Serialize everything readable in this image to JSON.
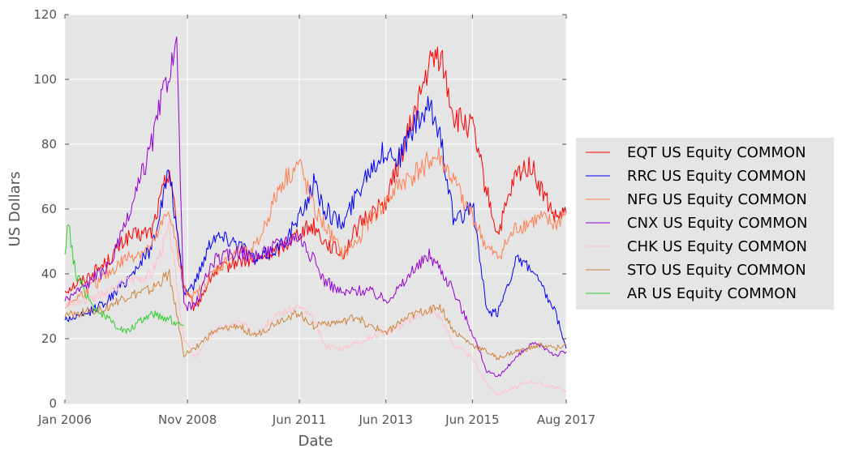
{
  "chart_data": {
    "type": "line",
    "xlabel": "Date",
    "ylabel": "US Dollars",
    "ylim": [
      0,
      120
    ],
    "yticks": [
      0,
      20,
      40,
      60,
      80,
      100,
      120
    ],
    "xlim": [
      "2006-01",
      "2017-08"
    ],
    "xtick_labels": [
      "Jan 2006",
      "Nov 2008",
      "Jun 2011",
      "Jun 2013",
      "Jun 2015",
      "Aug 2017"
    ],
    "grid": true,
    "legend_position": "right",
    "series": [
      {
        "name": "EQT US Equity COMMON",
        "color": "#ff0000",
        "x": [
          "2006-01",
          "2006-06",
          "2007-01",
          "2007-06",
          "2008-01",
          "2008-06",
          "2008-10",
          "2009-01",
          "2009-06",
          "2010-01",
          "2010-06",
          "2011-01",
          "2011-06",
          "2011-10",
          "2012-01",
          "2012-06",
          "2012-10",
          "2013-01",
          "2013-06",
          "2013-10",
          "2014-01",
          "2014-06",
          "2014-09",
          "2015-01",
          "2015-06",
          "2015-10",
          "2016-01",
          "2016-06",
          "2016-10",
          "2017-01",
          "2017-05",
          "2017-08"
        ],
        "y": [
          35,
          38,
          44,
          51,
          53,
          73,
          36,
          29,
          40,
          44,
          44,
          48,
          53,
          55,
          50,
          46,
          54,
          58,
          62,
          76,
          86,
          104,
          108,
          88,
          85,
          65,
          52,
          70,
          74,
          66,
          57,
          59
        ]
      },
      {
        "name": "RRC US Equity COMMON",
        "color": "#0000ff",
        "x": [
          "2006-01",
          "2006-06",
          "2007-01",
          "2007-06",
          "2008-01",
          "2008-06",
          "2008-10",
          "2009-01",
          "2009-06",
          "2010-01",
          "2010-06",
          "2011-01",
          "2011-06",
          "2011-10",
          "2012-01",
          "2012-06",
          "2012-10",
          "2013-01",
          "2013-06",
          "2013-10",
          "2014-01",
          "2014-06",
          "2014-09",
          "2015-01",
          "2015-06",
          "2015-10",
          "2016-01",
          "2016-06",
          "2016-10",
          "2017-01",
          "2017-05",
          "2017-08"
        ],
        "y": [
          26,
          27,
          32,
          38,
          48,
          72,
          34,
          37,
          52,
          50,
          44,
          49,
          57,
          68,
          60,
          55,
          65,
          72,
          78,
          76,
          84,
          91,
          84,
          55,
          62,
          28,
          28,
          44,
          42,
          36,
          28,
          17
        ]
      },
      {
        "name": "NFG US Equity COMMON",
        "color": "#ff7f50",
        "x": [
          "2006-01",
          "2006-06",
          "2007-01",
          "2007-06",
          "2008-01",
          "2008-06",
          "2008-10",
          "2009-01",
          "2009-06",
          "2010-01",
          "2010-06",
          "2011-01",
          "2011-06",
          "2011-10",
          "2012-01",
          "2012-06",
          "2012-10",
          "2013-01",
          "2013-06",
          "2013-10",
          "2014-01",
          "2014-06",
          "2014-09",
          "2015-01",
          "2015-06",
          "2015-10",
          "2016-01",
          "2016-06",
          "2016-10",
          "2017-01",
          "2017-05",
          "2017-08"
        ],
        "y": [
          30,
          34,
          40,
          45,
          48,
          60,
          35,
          33,
          40,
          47,
          48,
          68,
          74,
          60,
          55,
          46,
          50,
          56,
          62,
          68,
          70,
          75,
          76,
          68,
          58,
          48,
          45,
          54,
          56,
          57,
          55,
          59
        ]
      },
      {
        "name": "CNX US Equity COMMON",
        "color": "#9400d3",
        "x": [
          "2006-01",
          "2006-06",
          "2007-01",
          "2007-06",
          "2008-01",
          "2008-06",
          "2008-08",
          "2008-10",
          "2009-01",
          "2009-06",
          "2010-01",
          "2010-06",
          "2011-01",
          "2011-06",
          "2011-10",
          "2012-01",
          "2012-06",
          "2012-10",
          "2013-01",
          "2013-06",
          "2013-10",
          "2014-01",
          "2014-06",
          "2014-09",
          "2015-01",
          "2015-06",
          "2015-10",
          "2016-01",
          "2016-06",
          "2016-10",
          "2017-01",
          "2017-05",
          "2017-08"
        ],
        "y": [
          32,
          36,
          42,
          55,
          80,
          104,
          108,
          30,
          30,
          44,
          47,
          45,
          50,
          52,
          44,
          38,
          34,
          35,
          35,
          32,
          36,
          40,
          46,
          42,
          34,
          22,
          10,
          8,
          14,
          18,
          18,
          15,
          16
        ]
      },
      {
        "name": "CHK US Equity COMMON",
        "color": "#ffc0cb",
        "x": [
          "2006-01",
          "2006-06",
          "2007-01",
          "2007-06",
          "2008-01",
          "2008-06",
          "2008-10",
          "2009-01",
          "2009-06",
          "2010-01",
          "2010-06",
          "2011-01",
          "2011-06",
          "2011-10",
          "2012-01",
          "2012-06",
          "2012-10",
          "2013-01",
          "2013-06",
          "2013-10",
          "2014-01",
          "2014-06",
          "2014-09",
          "2015-01",
          "2015-06",
          "2015-10",
          "2016-01",
          "2016-06",
          "2016-10",
          "2017-01",
          "2017-05",
          "2017-08"
        ],
        "y": [
          30,
          32,
          34,
          38,
          40,
          54,
          20,
          14,
          22,
          25,
          22,
          28,
          30,
          26,
          18,
          17,
          19,
          20,
          22,
          24,
          26,
          29,
          27,
          18,
          14,
          6,
          3,
          5,
          7,
          6,
          5,
          4
        ]
      },
      {
        "name": "STO US Equity COMMON",
        "color": "#cd853f",
        "x": [
          "2006-01",
          "2006-06",
          "2007-01",
          "2007-06",
          "2008-01",
          "2008-06",
          "2008-10",
          "2009-01",
          "2009-06",
          "2010-01",
          "2010-06",
          "2011-01",
          "2011-06",
          "2011-10",
          "2012-01",
          "2012-06",
          "2012-10",
          "2013-01",
          "2013-06",
          "2013-10",
          "2014-01",
          "2014-06",
          "2014-09",
          "2015-01",
          "2015-06",
          "2015-10",
          "2016-01",
          "2016-06",
          "2016-10",
          "2017-01",
          "2017-05",
          "2017-08"
        ],
        "y": [
          27,
          28,
          30,
          33,
          35,
          40,
          15,
          17,
          22,
          24,
          21,
          26,
          28,
          24,
          25,
          25,
          27,
          24,
          22,
          25,
          27,
          29,
          30,
          22,
          18,
          16,
          14,
          16,
          17,
          18,
          17,
          18
        ]
      },
      {
        "name": "AR US Equity COMMON",
        "color": "#32cd32",
        "x": [
          "2006-01",
          "2006-02",
          "2006-04",
          "2006-06",
          "2006-09",
          "2007-01",
          "2007-06",
          "2008-01",
          "2008-06",
          "2008-10"
        ],
        "y": [
          47,
          55,
          40,
          36,
          30,
          26,
          22,
          28,
          26,
          24
        ]
      }
    ]
  }
}
